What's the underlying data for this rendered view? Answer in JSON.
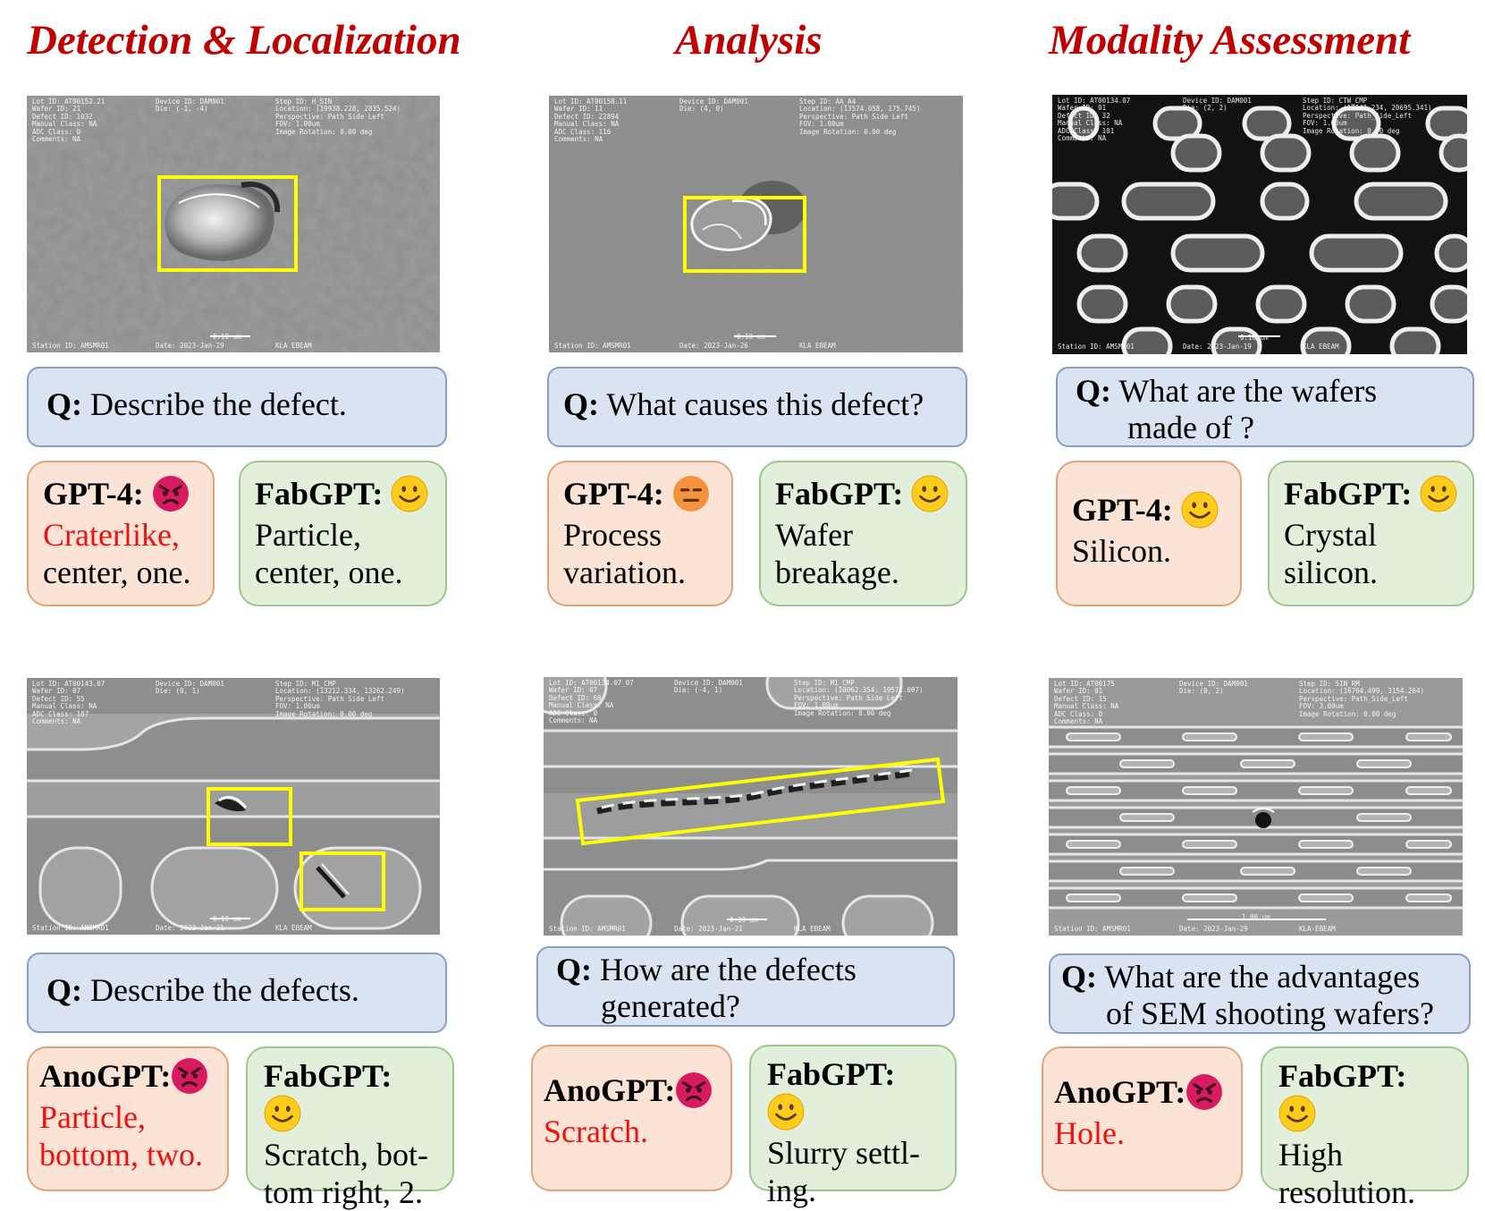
{
  "titles": {
    "col1": "Detection & Localization",
    "col2": "Analysis",
    "col3": "Modality Assessment"
  },
  "panels": [
    {
      "question_prefix": "Q:",
      "question": "Describe the defect.",
      "left": {
        "model": "GPT-4:",
        "answer_wrong": "Craterlike,",
        "answer_rest": "center, one.",
        "emoji": "angry-face-icon"
      },
      "right": {
        "model": "FabGPT:",
        "answer": "Particle, center, one.",
        "emoji": "smiley-face-icon"
      }
    },
    {
      "question_prefix": "Q:",
      "question": "What causes this defect?",
      "left": {
        "model": "GPT-4:",
        "answer": "Process variation.",
        "emoji": "neutral-face-icon"
      },
      "right": {
        "model": "FabGPT:",
        "answer": "Wafer breakage.",
        "emoji": "smiley-face-icon"
      }
    },
    {
      "question_prefix": "Q:",
      "question_line1": "What are the wafers",
      "question_line2": "made of ?",
      "left": {
        "model": "GPT-4:",
        "answer": "Silicon.",
        "emoji": "smiley-face-icon"
      },
      "right": {
        "model": "FabGPT:",
        "answer": "Crystal silicon.",
        "emoji": "smiley-face-icon"
      }
    },
    {
      "question_prefix": "Q:",
      "question": "Describe the defects.",
      "left": {
        "model": "AnoGPT:",
        "answer_wrong": "Particle, bottom, two.",
        "emoji": "angry-face-icon"
      },
      "right": {
        "model": "FabGPT:",
        "answer": "Scratch, bot-tom right, 2.",
        "answer_line1": "Scratch, bot-",
        "answer_line2": "tom right, 2.",
        "emoji": "smiley-face-icon"
      }
    },
    {
      "question_prefix": "Q:",
      "question_line1": "How are the defects",
      "question_line2": "generated?",
      "left": {
        "model": "AnoGPT:",
        "answer_wrong": "Scratch.",
        "emoji": "angry-face-icon"
      },
      "right": {
        "model": "FabGPT:",
        "answer_line1": "Slurry settl-",
        "answer_line2": "ing.",
        "emoji": "smiley-face-icon"
      }
    },
    {
      "question_prefix": "Q:",
      "question_line1": "What are the advantages",
      "question_line2": "of SEM shooting wafers?",
      "left": {
        "model": "AnoGPT:",
        "answer_wrong": "Hole.",
        "emoji": "angry-face-icon"
      },
      "right": {
        "model": "FabGPT:",
        "answer_line1": "High",
        "answer_line2": "resolution.",
        "emoji": "smiley-face-icon"
      }
    }
  ],
  "sem_meta": {
    "img1": {
      "left": "Lot ID: AT00152.21\nWafer ID: 21\nDefect ID: 1032\nManual Class: NA\nADC Class: 0\nComments: NA",
      "mid": "Device ID: DAM001\nDie: (-1, -4)",
      "right": "Step ID: H_SIN\nLocation: (19938.228, 2835.524)\nPerspective: Path Side Left\nFOV: 1.00um\nImage Rotation: 0.00 deg",
      "footer_station": "Station ID: AMSMR01",
      "footer_date": "Date: 2023-Jan-29",
      "footer_tool": "KLA EBEAM",
      "scale": "0.10 um"
    },
    "img2": {
      "left": "Lot ID: AT00158.11\nWafer ID: 11\nDefect ID: 22894\nManual Class: NA\nADC Class: 116\nComments: NA",
      "mid": "Device ID: DAM001\nDie: (4, 0)",
      "right": "Step ID: AA_A4\nLocation: (13574.058, 175.745)\nPerspective: Path Side Left\nFOV: 1.00um\nImage Rotation: 0.00 deg",
      "footer_station": "Station ID: AMSMR01",
      "footer_date": "Date: 2023-Jan-26",
      "footer_tool": "KLA EBEAM",
      "scale": "0.10 um"
    },
    "img3": {
      "left": "Lot ID: AT00134.07\nWafer ID: 01\nDefect ID: 32\nManual Class: NA\nADC Class: 101\nComments: NA",
      "mid": "Device ID: DAM001\nDie: (2, 2)",
      "right": "Step ID: CTW_CMP\nLocation: (17141.234, 20695.341)\nPerspective: Path_Side_Left\nFOV: 1.00um\nImage Rotation: 0.00 deg",
      "footer_station": "Station ID: AMSMR01",
      "footer_date": "Date: 2023-Jan-19",
      "footer_tool": "KLA EBEAM",
      "scale": "0.10 um"
    },
    "img4": {
      "left": "Lot ID: AT00143.07\nWafer ID: 07\nDefect ID: 55\nManual Class: NA\nADC Class: 107\nComments: NA",
      "mid": "Device ID: DAM001\nDie: (0, 1)",
      "right": "Step ID: M1_CMP\nLocation: (13212.334, 13262.249)\nPerspective: Path Side Left\nFOV: 1.00um\nImage Rotation: 0.00 deg",
      "footer_station": "Station ID: AMSMR01",
      "footer_date": "Date: 2023-Jan-21",
      "footer_tool": "KLA EBEAM",
      "scale": "0.10 um"
    },
    "img5": {
      "left": "Lot ID: AT00134.07_07\nWafer ID: 07\nDefect ID: 60\nManual Class: NA\nADC Class: 0\nComments: NA",
      "mid": "Device ID: DAM001\nDie: (-4, 1)",
      "right": "Step ID: M1_CMP\nLocation: (10062.354, 19571.007)\nPerspective: Path Side Left\nFOV: 1.00um\nImage Rotation: 0.00 deg",
      "footer_station": "Station ID: AMSMR01",
      "footer_date": "Date: 2023-Jan-21",
      "footer_tool": "KLA EBEAM",
      "scale": "0.10 um"
    },
    "img6": {
      "left": "Lot ID: AT00175\nWafer ID: 01\nDefect ID: 15\nManual Class: NA\nADC Class: 0\nComments: NA",
      "mid": "Device ID: DAM001\nDie: (0, 2)",
      "right": "Step ID: SIN_RM\nLocation: (16704.499, 3154.264)\nPerspective: Path_Side_Left\nFOV: 3.00um\nImage Rotation: 0.00 deg",
      "footer_station": "Station ID: AMSMR01",
      "footer_date": "Date: 2023-Jan-29",
      "footer_tool": "KLA-EBEAM",
      "scale": "1.00 um"
    }
  },
  "colors": {
    "title_red": "#c00000",
    "wrong_red": "#ee1111",
    "question_fill": "#d9e3f1",
    "question_border": "#8b9dc0",
    "bad_fill": "#fbe3d6",
    "bad_border": "#e0a478",
    "good_fill": "#e2efdb",
    "good_border": "#9bc78a",
    "box_yellow": "#ffff00"
  }
}
